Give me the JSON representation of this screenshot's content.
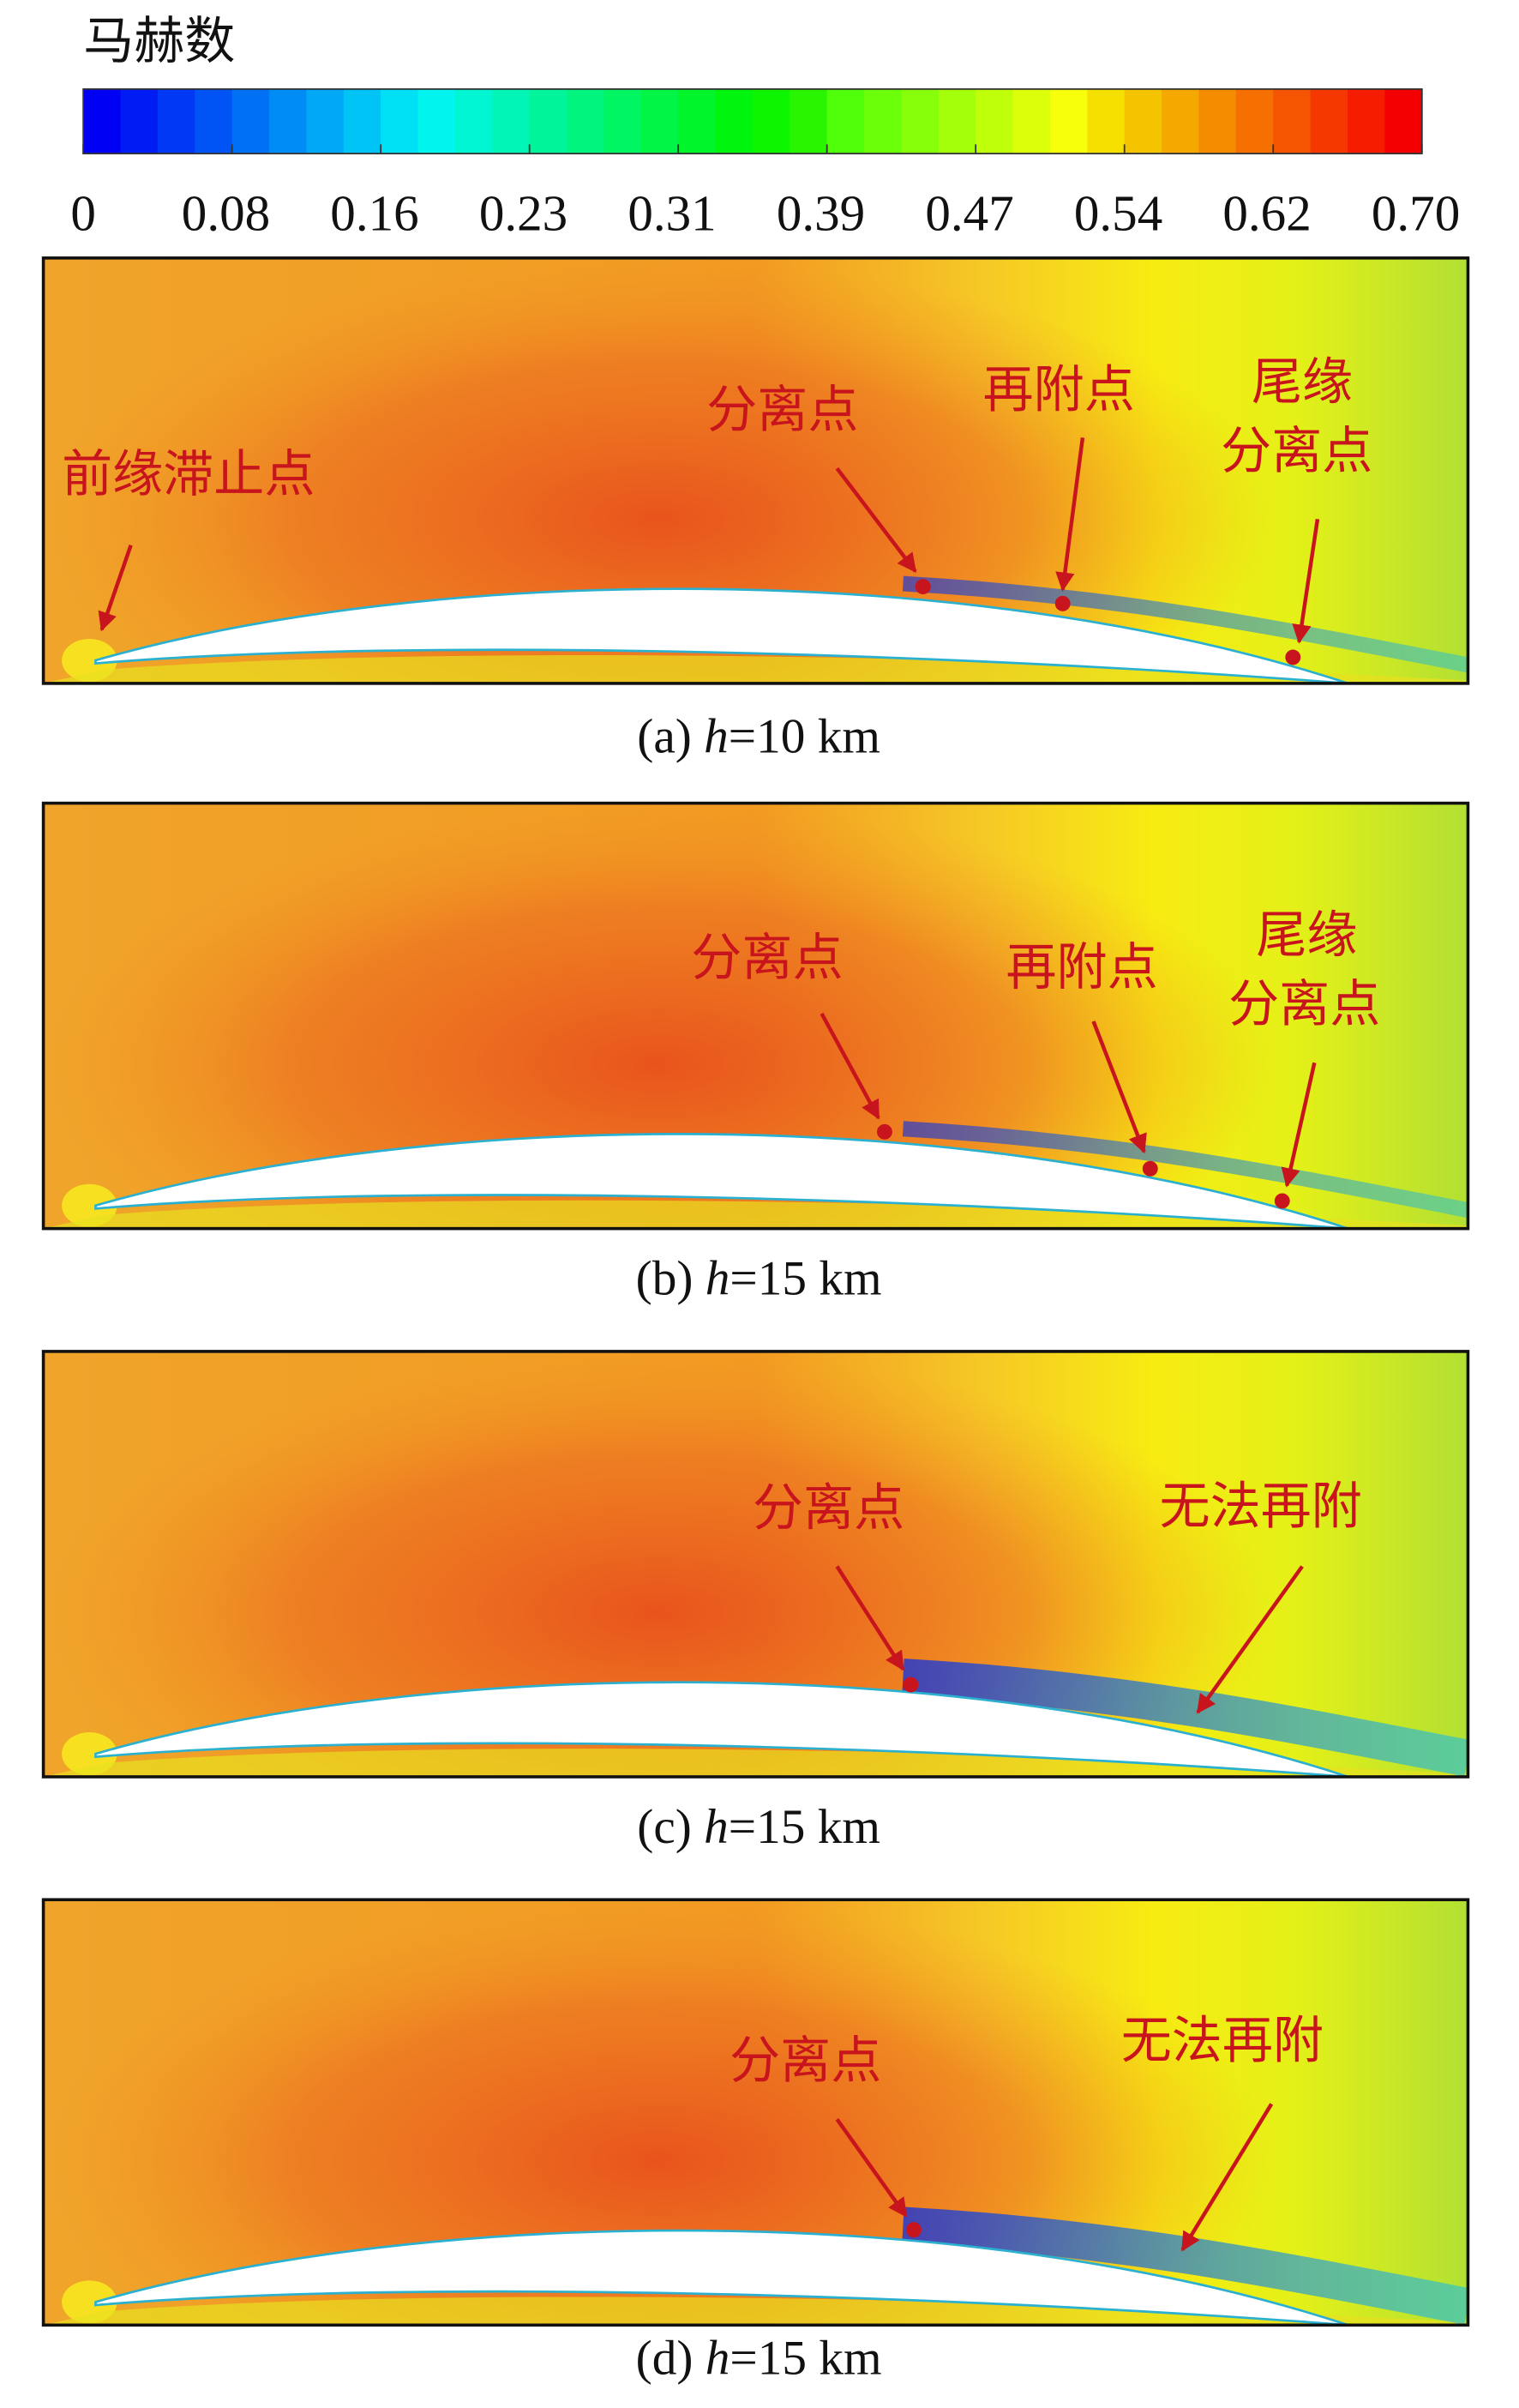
{
  "colorbar": {
    "title": "马赫数",
    "tick_labels": [
      "0",
      "0.08",
      "0.16",
      "0.23",
      "0.31",
      "0.39",
      "0.47",
      "0.54",
      "0.62",
      "0.70"
    ]
  },
  "panels": [
    {
      "caption": {
        "label": "(a)",
        "variable": "h",
        "rest": "=10 km"
      },
      "annotations": [
        {
          "lines": [
            "前缘滞止点"
          ]
        },
        {
          "lines": [
            "分离点"
          ]
        },
        {
          "lines": [
            "再附点"
          ]
        },
        {
          "lines": [
            "尾缘",
            "分离点"
          ]
        }
      ]
    },
    {
      "caption": {
        "label": "(b)",
        "variable": "h",
        "rest": "=15 km"
      },
      "annotations": [
        {
          "lines": [
            "分离点"
          ]
        },
        {
          "lines": [
            "再附点"
          ]
        },
        {
          "lines": [
            "尾缘",
            "分离点"
          ]
        }
      ]
    },
    {
      "caption": {
        "label": "(c)",
        "variable": "h",
        "rest": "=15 km"
      },
      "annotations": [
        {
          "lines": [
            "分离点"
          ]
        },
        {
          "lines": [
            "无法再附"
          ]
        }
      ]
    },
    {
      "caption": {
        "label": "(d)",
        "variable": "h",
        "rest": "=15 km"
      },
      "annotations": [
        {
          "lines": [
            "分离点"
          ]
        },
        {
          "lines": [
            "无法再附"
          ]
        }
      ]
    }
  ]
}
